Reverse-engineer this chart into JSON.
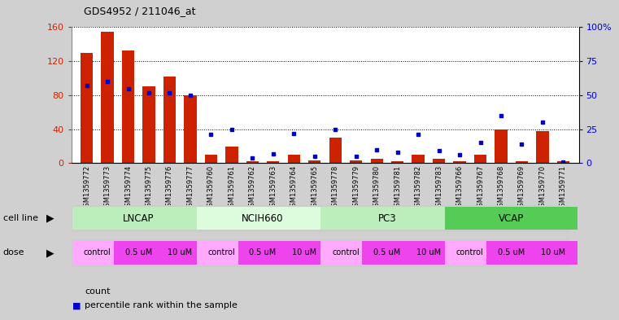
{
  "title": "GDS4952 / 211046_at",
  "samples": [
    "GSM1359772",
    "GSM1359773",
    "GSM1359774",
    "GSM1359775",
    "GSM1359776",
    "GSM1359777",
    "GSM1359760",
    "GSM1359761",
    "GSM1359762",
    "GSM1359763",
    "GSM1359764",
    "GSM1359765",
    "GSM1359778",
    "GSM1359779",
    "GSM1359780",
    "GSM1359781",
    "GSM1359782",
    "GSM1359783",
    "GSM1359766",
    "GSM1359767",
    "GSM1359768",
    "GSM1359769",
    "GSM1359770",
    "GSM1359771"
  ],
  "counts": [
    130,
    155,
    133,
    90,
    102,
    80,
    10,
    20,
    2,
    2,
    10,
    3,
    30,
    3,
    5,
    2,
    10,
    5,
    2,
    10,
    40,
    2,
    38,
    2
  ],
  "percentile_ranks": [
    57,
    60,
    55,
    52,
    52,
    50,
    21,
    25,
    4,
    7,
    22,
    5,
    25,
    5,
    10,
    8,
    21,
    9,
    6,
    15,
    35,
    14,
    30,
    1
  ],
  "bar_color": "#cc2200",
  "dot_color": "#0000cc",
  "left_axis_color": "#cc2200",
  "right_axis_color": "#0000cc",
  "ylim_left": [
    0,
    160
  ],
  "ylim_right": [
    0,
    100
  ],
  "left_ticks": [
    0,
    40,
    80,
    120,
    160
  ],
  "right_ticks": [
    0,
    25,
    50,
    75,
    100
  ],
  "right_tick_labels": [
    "0",
    "25",
    "50",
    "75",
    "100%"
  ],
  "bg_color": "#d0d0d0",
  "plot_bg_color": "#ffffff",
  "xtick_bg_color": "#d0d0d0",
  "cell_line_names": [
    "LNCAP",
    "NCIH660",
    "PC3",
    "VCAP"
  ],
  "cell_line_ranges": [
    [
      0,
      6
    ],
    [
      6,
      12
    ],
    [
      12,
      18
    ],
    [
      18,
      24
    ]
  ],
  "cell_line_colors": [
    "#bbeebb",
    "#ddfbdd",
    "#bbeebb",
    "#55cc55"
  ],
  "dose_seq": [
    "control",
    "0.5 uM",
    "10 uM",
    "control",
    "0.5 uM",
    "10 uM",
    "control",
    "0.5 uM",
    "10 uM",
    "control",
    "0.5 uM",
    "10 uM"
  ],
  "dose_ranges": [
    [
      0,
      2
    ],
    [
      2,
      4
    ],
    [
      4,
      6
    ],
    [
      6,
      8
    ],
    [
      8,
      10
    ],
    [
      10,
      12
    ],
    [
      12,
      14
    ],
    [
      14,
      16
    ],
    [
      16,
      18
    ],
    [
      18,
      20
    ],
    [
      20,
      22
    ],
    [
      22,
      24
    ]
  ],
  "dose_control_color": "#ffaaff",
  "dose_other_color": "#ee44ee",
  "legend_count_color": "#cc2200",
  "legend_pct_color": "#0000cc"
}
